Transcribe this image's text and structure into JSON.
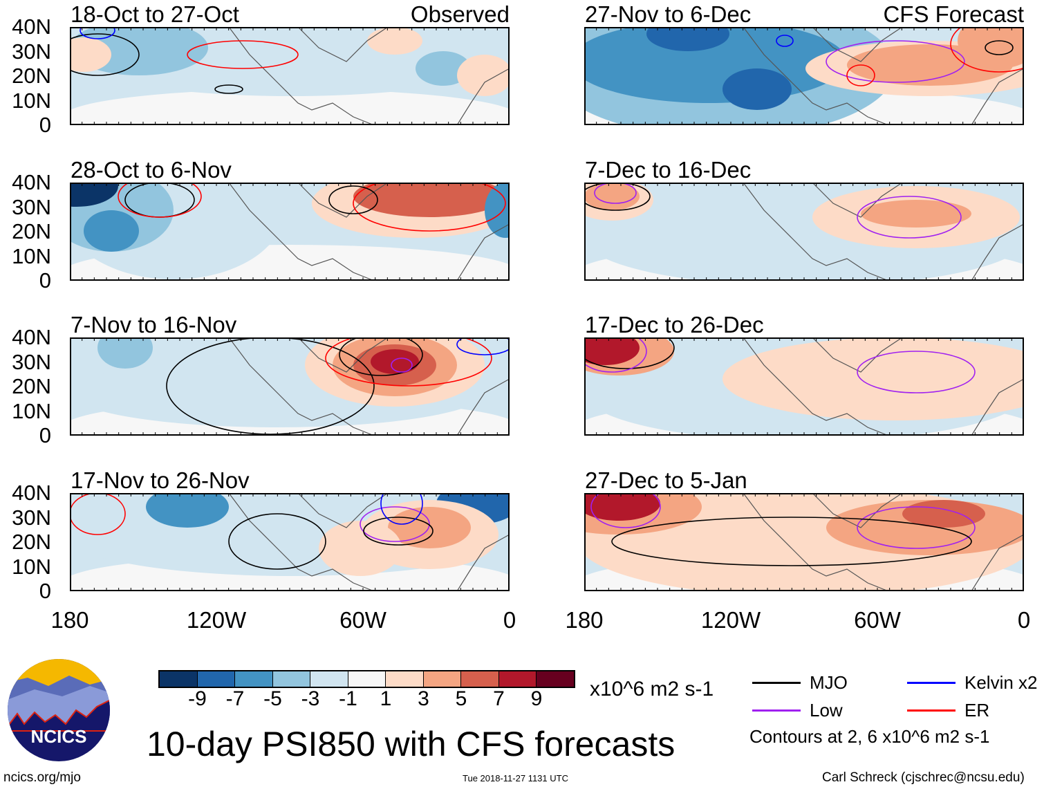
{
  "chart_data": {
    "type": "heatmap",
    "title": "10-day PSI850 with CFS forecasts",
    "variable": "PSI850 anomaly",
    "units": "x10^6 m2 s-1",
    "column_labels": [
      "Observed",
      "CFS Forecast"
    ],
    "panels": [
      {
        "title": "18-Oct to 27-Oct",
        "column": "Observed"
      },
      {
        "title": "28-Oct to 6-Nov",
        "column": "Observed"
      },
      {
        "title": "7-Nov to 16-Nov",
        "column": "Observed"
      },
      {
        "title": "17-Nov to 26-Nov",
        "column": "Observed"
      },
      {
        "title": "27-Nov to 6-Dec",
        "column": "CFS Forecast"
      },
      {
        "title": "7-Dec to 16-Dec",
        "column": "CFS Forecast"
      },
      {
        "title": "17-Dec to 26-Dec",
        "column": "CFS Forecast"
      },
      {
        "title": "27-Dec to 5-Jan",
        "column": "CFS Forecast"
      }
    ],
    "y_ticks": [
      "40N",
      "30N",
      "20N",
      "10N",
      "0"
    ],
    "x_ticks": [
      "180",
      "120W",
      "60W",
      "0"
    ],
    "ylim": [
      0,
      40
    ],
    "xlim": [
      -180,
      0
    ],
    "colorbar": {
      "levels": [
        "-9",
        "-7",
        "-5",
        "-3",
        "-1",
        "1",
        "3",
        "5",
        "7",
        "9"
      ],
      "colors": [
        "#0b3467",
        "#2166ac",
        "#4393c3",
        "#92c5de",
        "#d1e5f0",
        "#f7f7f7",
        "#fddbc7",
        "#f4a582",
        "#d6604d",
        "#b2182b",
        "#67001f"
      ],
      "units_label": "x10^6 m2 s-1"
    },
    "legend": [
      {
        "label": "MJO",
        "color": "#000000"
      },
      {
        "label": "Kelvin x2",
        "color": "#0000ff"
      },
      {
        "label": "Low",
        "color": "#a020f0"
      },
      {
        "label": "ER",
        "color": "#ff0000"
      }
    ],
    "contour_note": "Contours at 2, 6 x10^6 m2 s-1"
  },
  "footer": {
    "logo_text": "NCICS",
    "url": "ncics.org/mjo",
    "timestamp": "Tue 2018-11-27 1131 UTC",
    "credit": "Carl Schreck (cjschrec@ncsu.edu)"
  }
}
